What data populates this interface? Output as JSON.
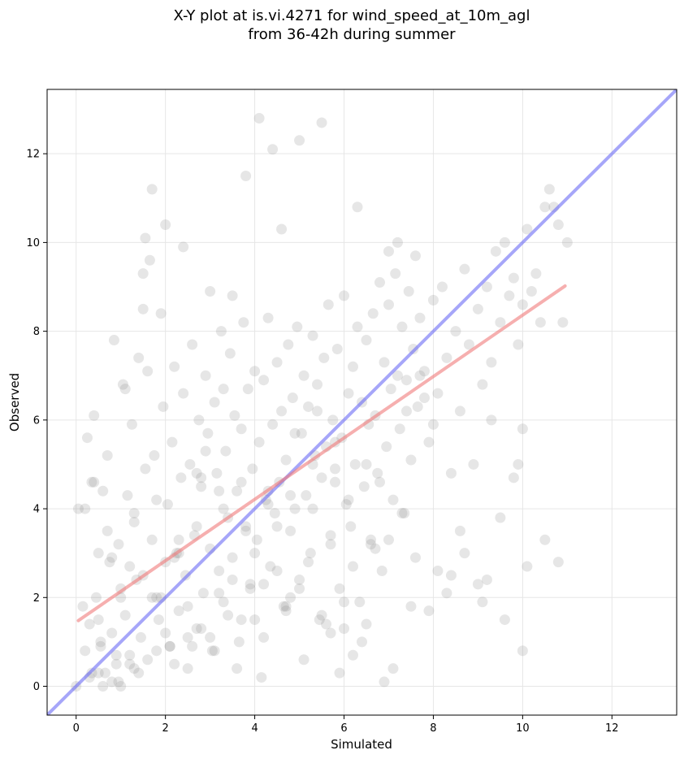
{
  "chart_data": {
    "type": "scatter",
    "title_lines": [
      "X-Y plot at is.vi.4271 for wind_speed_at_10m_agl",
      "from 36-42h during summer"
    ],
    "xlabel": "Simulated",
    "ylabel": "Observed",
    "xlim": [
      -0.65,
      13.45
    ],
    "ylim": [
      -0.65,
      13.45
    ],
    "xticks": [
      0,
      2,
      4,
      6,
      8,
      10,
      12
    ],
    "yticks": [
      0,
      2,
      4,
      6,
      8,
      10,
      12
    ],
    "grid": true,
    "series": [
      {
        "kind": "points",
        "color": "#808080",
        "x": [
          0.05,
          0.15,
          0.2,
          0.25,
          0.3,
          0.35,
          0.4,
          0.45,
          0.5,
          0.55,
          0.6,
          0.65,
          0.7,
          0.75,
          0.8,
          0.85,
          0.9,
          0.95,
          1.0,
          1.05,
          1.1,
          1.15,
          1.2,
          1.25,
          1.3,
          1.35,
          1.4,
          1.45,
          1.5,
          1.55,
          1.6,
          1.65,
          1.7,
          1.75,
          1.8,
          1.85,
          1.9,
          1.95,
          2.0,
          2.05,
          2.1,
          2.15,
          2.2,
          2.25,
          2.3,
          2.35,
          2.4,
          2.45,
          2.5,
          2.55,
          2.6,
          2.65,
          2.7,
          2.75,
          2.8,
          2.85,
          2.9,
          2.95,
          3.0,
          3.05,
          3.1,
          3.15,
          3.2,
          3.25,
          3.3,
          3.35,
          3.4,
          3.45,
          3.5,
          3.55,
          3.6,
          3.65,
          3.7,
          3.75,
          3.8,
          3.85,
          3.9,
          3.95,
          4.0,
          4.05,
          4.1,
          4.15,
          4.2,
          4.25,
          4.3,
          4.35,
          4.4,
          4.45,
          4.5,
          4.55,
          4.6,
          4.65,
          4.7,
          4.75,
          4.8,
          4.85,
          4.9,
          4.95,
          5.0,
          5.05,
          5.1,
          5.15,
          5.2,
          5.25,
          5.3,
          5.35,
          5.4,
          5.45,
          5.5,
          5.55,
          5.6,
          5.65,
          5.7,
          5.75,
          5.8,
          5.85,
          5.9,
          5.95,
          6.0,
          6.05,
          6.1,
          6.15,
          6.2,
          6.25,
          6.3,
          6.35,
          6.4,
          6.45,
          6.5,
          6.55,
          6.6,
          6.65,
          6.7,
          6.75,
          6.8,
          6.85,
          6.9,
          6.95,
          7.0,
          7.05,
          7.1,
          7.15,
          7.2,
          7.25,
          7.3,
          7.35,
          7.4,
          7.45,
          7.5,
          7.55,
          7.6,
          7.65,
          7.7,
          7.8,
          7.9,
          8.0,
          8.1,
          8.2,
          8.3,
          8.4,
          8.5,
          8.6,
          8.7,
          8.8,
          8.9,
          9.0,
          9.1,
          9.2,
          9.3,
          9.4,
          9.5,
          9.6,
          9.7,
          9.8,
          9.9,
          10.0,
          10.1,
          10.2,
          10.3,
          10.4,
          10.5,
          10.6,
          10.7,
          10.8,
          10.9,
          11.0,
          1.5,
          1.55,
          1.7,
          2.0,
          2.4,
          3.0,
          3.5,
          3.8,
          4.1,
          4.4,
          4.6,
          5.0,
          5.5,
          6.3,
          7.0,
          7.2,
          7.1,
          9.6,
          10.1,
          9.5,
          9.8,
          10.0,
          0.0,
          0.3,
          0.5,
          0.8,
          1.0,
          1.2,
          0.6,
          0.9,
          1.4,
          1.8,
          2.2,
          2.6,
          3.1,
          3.6,
          4.2,
          4.7,
          5.3,
          5.8,
          6.6,
          7.6,
          8.3,
          9.1,
          10.0,
          8.7,
          9.0,
          6.9,
          6.0,
          5.9,
          7.7,
          7.8,
          8.0,
          3.3,
          2.9,
          1.6,
          1.1,
          0.7,
          0.4,
          0.2,
          2.7,
          3.2,
          3.7,
          4.3,
          4.9,
          5.4,
          6.1,
          6.8,
          7.4,
          7.9,
          8.4,
          9.3,
          9.9,
          10.5,
          10.8,
          2.3,
          2.5,
          1.9,
          1.3,
          0.95,
          0.55,
          0.35,
          4.0,
          4.8,
          5.6,
          6.2,
          6.5,
          6.7,
          7.3,
          7.5,
          8.1,
          8.6,
          9.2,
          2.1,
          2.8,
          3.4,
          3.9,
          4.5,
          5.1,
          5.7,
          6.4,
          0.5,
          1.0,
          1.5,
          2.0,
          2.5,
          3.0,
          3.5,
          4.0,
          4.5,
          5.0,
          5.5,
          6.0,
          6.5,
          7.0,
          1.2,
          1.7,
          2.2,
          2.7,
          3.2,
          3.7,
          4.2,
          4.7,
          5.2,
          5.7,
          6.2,
          0.8,
          1.3,
          1.8,
          2.3,
          2.8,
          3.3,
          3.8,
          4.3,
          4.8,
          5.3,
          5.8
        ],
        "y": [
          4.0,
          1.8,
          0.8,
          5.6,
          1.4,
          4.6,
          6.1,
          2.0,
          3.0,
          0.9,
          4.4,
          0.3,
          3.5,
          2.8,
          1.2,
          7.8,
          0.5,
          3.2,
          2.2,
          6.8,
          1.6,
          4.3,
          0.7,
          5.9,
          3.7,
          2.4,
          7.4,
          1.1,
          8.5,
          4.9,
          0.6,
          9.6,
          3.3,
          5.2,
          2.0,
          1.5,
          8.4,
          6.3,
          2.8,
          4.1,
          0.9,
          5.5,
          7.2,
          3.0,
          1.7,
          4.7,
          6.6,
          2.5,
          0.4,
          5.0,
          7.7,
          3.4,
          1.3,
          6.0,
          4.5,
          2.1,
          7.0,
          5.7,
          3.1,
          0.8,
          6.4,
          4.8,
          2.6,
          8.0,
          1.9,
          5.3,
          3.8,
          7.5,
          2.9,
          6.1,
          4.4,
          1.0,
          5.8,
          8.2,
          3.6,
          6.7,
          2.3,
          4.9,
          7.1,
          3.3,
          5.5,
          0.2,
          6.9,
          4.2,
          8.3,
          2.7,
          5.9,
          3.9,
          7.3,
          4.6,
          6.2,
          1.8,
          5.1,
          7.7,
          3.5,
          6.5,
          4.0,
          8.1,
          2.4,
          5.7,
          7.0,
          4.3,
          6.3,
          3.0,
          7.9,
          5.2,
          6.8,
          1.5,
          4.7,
          7.4,
          5.4,
          8.6,
          3.2,
          6.0,
          4.9,
          7.6,
          2.2,
          5.6,
          8.8,
          4.1,
          6.6,
          3.6,
          7.2,
          5.0,
          8.1,
          1.9,
          6.4,
          4.5,
          7.8,
          5.9,
          3.3,
          8.4,
          6.1,
          4.8,
          9.1,
          2.6,
          7.3,
          5.4,
          8.6,
          6.7,
          4.2,
          9.3,
          7.0,
          5.8,
          8.1,
          3.9,
          6.9,
          8.9,
          5.1,
          7.6,
          9.7,
          6.3,
          8.3,
          7.1,
          5.5,
          8.7,
          6.6,
          9.0,
          7.4,
          4.8,
          8.0,
          6.2,
          9.4,
          7.7,
          5.0,
          8.5,
          6.8,
          9.0,
          7.3,
          9.8,
          8.2,
          10.0,
          8.8,
          9.2,
          7.7,
          8.6,
          10.3,
          8.9,
          9.3,
          8.2,
          10.8,
          11.2,
          10.8,
          10.4,
          8.2,
          10.0,
          9.3,
          10.1,
          11.2,
          10.4,
          9.9,
          8.9,
          8.8,
          11.5,
          12.8,
          12.1,
          10.3,
          12.3,
          12.7,
          10.8,
          9.8,
          10.0,
          0.4,
          1.5,
          2.7,
          3.8,
          4.7,
          5.8,
          0.0,
          0.2,
          0.3,
          0.1,
          0.0,
          0.5,
          0.0,
          0.7,
          0.3,
          0.8,
          0.5,
          0.9,
          0.8,
          0.4,
          1.1,
          1.8,
          4.0,
          5.5,
          3.2,
          2.9,
          2.1,
          1.9,
          0.8,
          3.0,
          2.3,
          0.1,
          1.3,
          0.3,
          7.0,
          6.5,
          5.9,
          6.7,
          5.3,
          7.1,
          6.7,
          5.2,
          4.6,
          4.0,
          4.8,
          4.4,
          4.6,
          4.1,
          5.7,
          6.2,
          4.2,
          4.6,
          6.2,
          1.7,
          2.5,
          6.0,
          5.0,
          3.3,
          2.8,
          3.0,
          1.1,
          2.0,
          0.4,
          0.1,
          1.0,
          0.3,
          1.5,
          2.0,
          1.4,
          0.7,
          5.0,
          3.1,
          3.9,
          1.8,
          2.6,
          3.5,
          2.4,
          0.9,
          1.3,
          1.6,
          2.2,
          3.6,
          0.6,
          1.2,
          1.0,
          1.5,
          2.0,
          2.5,
          1.2,
          1.8,
          1.1,
          2.4,
          3.0,
          2.6,
          2.2,
          1.6,
          1.9,
          1.4,
          3.3,
          2.7,
          2.0,
          2.9,
          3.6,
          2.1,
          1.5,
          2.3,
          1.7,
          2.8,
          3.4,
          2.7,
          2.9,
          3.9,
          4.2,
          3.3,
          4.7,
          4.0,
          3.5,
          4.4,
          4.3,
          5.0,
          4.6
        ]
      },
      {
        "kind": "line",
        "label_hint": "identity",
        "color": "#6b6bf5",
        "x": [
          -0.65,
          13.45
        ],
        "y": [
          -0.65,
          13.45
        ]
      },
      {
        "kind": "line",
        "label_hint": "fit",
        "color": "#f07a7a",
        "x": [
          0.05,
          10.95
        ],
        "y": [
          1.48,
          9.02
        ]
      }
    ]
  }
}
